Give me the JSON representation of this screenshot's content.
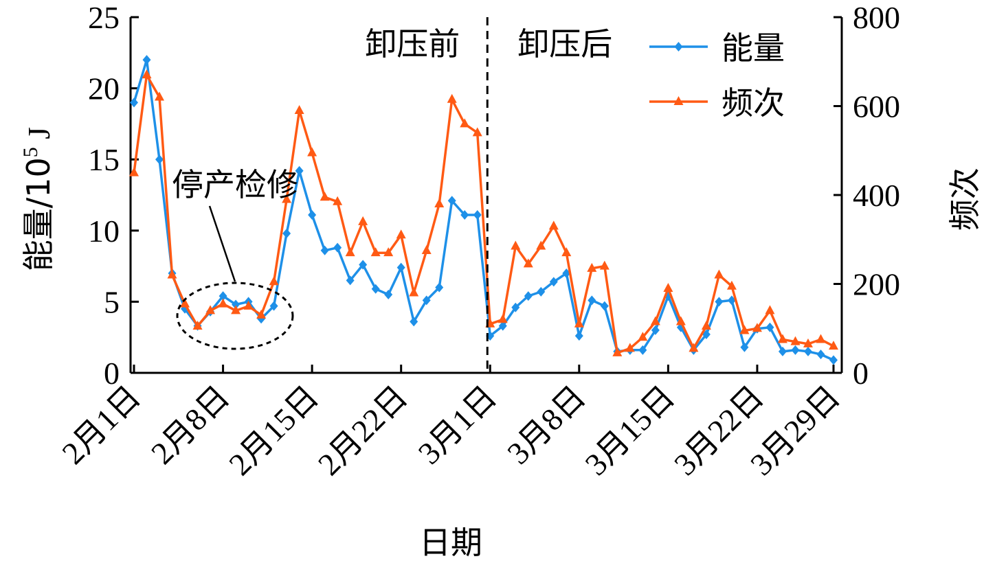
{
  "chart_data": {
    "type": "line",
    "xlabel": "日期",
    "ylabel_left": "能量/10",
    "ylabel_left_exp": "5",
    "ylabel_left_unit": " J",
    "ylabel_right": "频次",
    "ylim_left": [
      0,
      25
    ],
    "ylim_right": [
      0,
      800
    ],
    "yticks_left": [
      "0",
      "5",
      "10",
      "15",
      "20",
      "25"
    ],
    "yticks_right": [
      "0",
      "200",
      "400",
      "600",
      "800"
    ],
    "x_tick_labels": [
      "2月1日",
      "2月8日",
      "2月15日",
      "2月22日",
      "3月1日",
      "3月8日",
      "3月15日",
      "3月22日",
      "3月29日"
    ],
    "grid": false,
    "legend_position": "top-right",
    "annotations": {
      "before": "卸压前",
      "after": "卸压后",
      "maintenance": "停产检修"
    },
    "colors": {
      "energy": "#1e90e8",
      "frequency": "#ff5a14"
    },
    "series": [
      {
        "name": "能量",
        "axis": "left",
        "values": [
          19.0,
          22.0,
          15.0,
          7.0,
          4.5,
          3.3,
          4.3,
          5.4,
          4.8,
          5.0,
          3.8,
          4.7,
          9.8,
          14.2,
          11.1,
          8.6,
          8.8,
          6.5,
          7.6,
          5.9,
          5.5,
          7.4,
          3.6,
          5.1,
          6.0,
          12.1,
          11.1,
          11.1,
          2.6,
          3.3,
          4.6,
          5.4,
          5.7,
          6.4,
          7.0,
          2.6,
          5.1,
          4.7,
          1.5,
          1.6,
          1.6,
          3.0,
          5.4,
          3.2,
          1.6,
          2.7,
          5.0,
          5.1,
          1.8,
          3.1,
          3.2,
          1.5,
          1.6,
          1.5,
          1.3,
          0.9
        ]
      },
      {
        "name": "频次",
        "axis": "right",
        "values": [
          450,
          670,
          620,
          220,
          155,
          105,
          140,
          155,
          140,
          150,
          130,
          205,
          390,
          590,
          495,
          395,
          385,
          270,
          340,
          270,
          270,
          310,
          180,
          275,
          380,
          615,
          560,
          540,
          110,
          120,
          285,
          245,
          285,
          330,
          270,
          110,
          235,
          240,
          45,
          55,
          80,
          115,
          190,
          115,
          55,
          105,
          220,
          195,
          95,
          100,
          140,
          75,
          70,
          65,
          75,
          60
        ]
      }
    ]
  }
}
